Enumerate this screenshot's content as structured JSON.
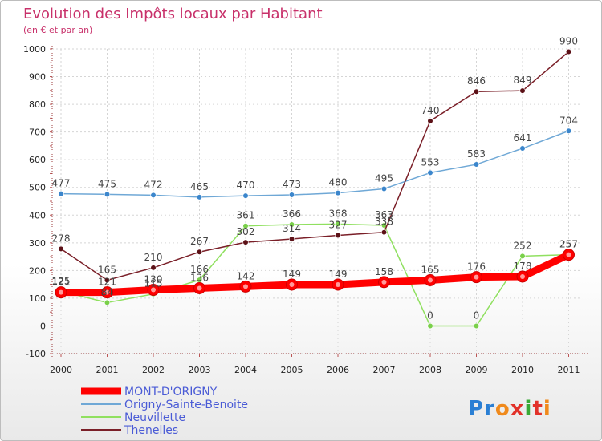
{
  "chart_data": {
    "type": "line",
    "title": "Evolution des Impôts locaux par Habitant",
    "subtitle": "(en € et par an)",
    "xlabel": "",
    "ylabel": "",
    "ylim": [
      -100,
      1000
    ],
    "yticks": [
      -100,
      0,
      100,
      200,
      300,
      400,
      500,
      600,
      700,
      800,
      900,
      1000
    ],
    "categories": [
      "2000",
      "2001",
      "2002",
      "2003",
      "2004",
      "2005",
      "2006",
      "2007",
      "2008",
      "2009",
      "2010",
      "2011"
    ],
    "grid": true,
    "legend_position": "bottom-left",
    "series": [
      {
        "name": "MONT-D'ORIGNY",
        "color": "#ff0000",
        "values": [
          121,
          121,
          130,
          136,
          142,
          149,
          149,
          158,
          165,
          176,
          178,
          257
        ]
      },
      {
        "name": "Origny-Sainte-Benoite",
        "color": "#6fa8d6",
        "values": [
          477,
          475,
          472,
          465,
          470,
          473,
          480,
          495,
          553,
          583,
          641,
          704
        ]
      },
      {
        "name": "Neuvillette",
        "color": "#90e060",
        "values": [
          125,
          84,
          115,
          166,
          361,
          366,
          368,
          363,
          0,
          0,
          252,
          257
        ]
      },
      {
        "name": "Thenelles",
        "color": "#7a1f28",
        "values": [
          278,
          165,
          210,
          267,
          302,
          314,
          327,
          338,
          740,
          846,
          849,
          990
        ]
      }
    ]
  },
  "logo": {
    "text": "Proxiti"
  }
}
